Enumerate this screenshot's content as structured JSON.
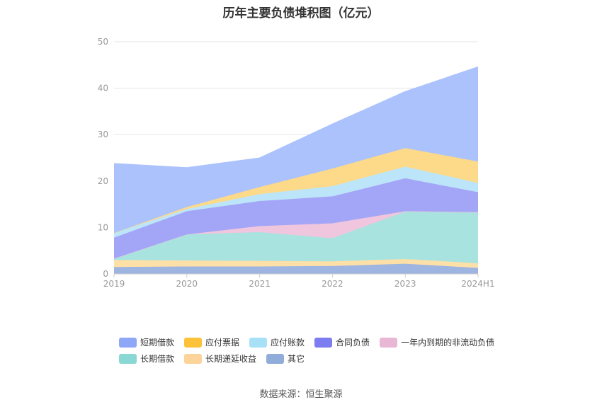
{
  "chart_data": {
    "type": "area",
    "stacked": true,
    "title": "历年主要负债堆积图（亿元）",
    "categories": [
      "2019",
      "2020",
      "2021",
      "2022",
      "2023",
      "2024H1"
    ],
    "ylim": [
      0,
      50
    ],
    "yticks": [
      0,
      10,
      20,
      30,
      40,
      50
    ],
    "grid": true,
    "legend_position": "bottom",
    "series": [
      {
        "name": "其它",
        "color": "#9db5e0",
        "values": [
          1.5,
          1.6,
          1.6,
          1.7,
          2.2,
          1.3
        ]
      },
      {
        "name": "长期递延收益",
        "color": "#fde0a8",
        "values": [
          1.5,
          1.3,
          1.2,
          1.0,
          1.0,
          1.0
        ]
      },
      {
        "name": "长期借款",
        "color": "#a8e3e0",
        "values": [
          0.3,
          5.6,
          6.2,
          5.0,
          10.2,
          10.9
        ]
      },
      {
        "name": "一年内到期的非流动负债",
        "color": "#efc6de",
        "values": [
          0.0,
          0.0,
          1.3,
          3.2,
          0.1,
          0.1
        ]
      },
      {
        "name": "合同负债",
        "color": "#a3a6f7",
        "values": [
          4.5,
          5.0,
          5.4,
          5.8,
          7.1,
          4.3
        ]
      },
      {
        "name": "应付账款",
        "color": "#bde5f9",
        "values": [
          1.0,
          0.5,
          1.5,
          2.2,
          2.5,
          2.0
        ]
      },
      {
        "name": "应付票据",
        "color": "#fdd98a",
        "values": [
          0.0,
          0.4,
          1.5,
          3.8,
          4.0,
          4.6
        ]
      },
      {
        "name": "短期借款",
        "color": "#abc2fc",
        "values": [
          15.0,
          8.5,
          6.3,
          9.6,
          12.2,
          20.4
        ]
      }
    ],
    "legend": [
      {
        "name": "短期借款",
        "color": "#8ea7f7"
      },
      {
        "name": "应付票据",
        "color": "#fbc23a"
      },
      {
        "name": "应付账款",
        "color": "#a8e0f8"
      },
      {
        "name": "合同负债",
        "color": "#7b7df0"
      },
      {
        "name": "一年内到期的非流动负债",
        "color": "#e9b7d6"
      },
      {
        "name": "长期借款",
        "color": "#89d8d3"
      },
      {
        "name": "长期递延收益",
        "color": "#fcd49a"
      },
      {
        "name": "其它",
        "color": "#91acd8"
      }
    ]
  },
  "source": "数据来源：恒生聚源"
}
